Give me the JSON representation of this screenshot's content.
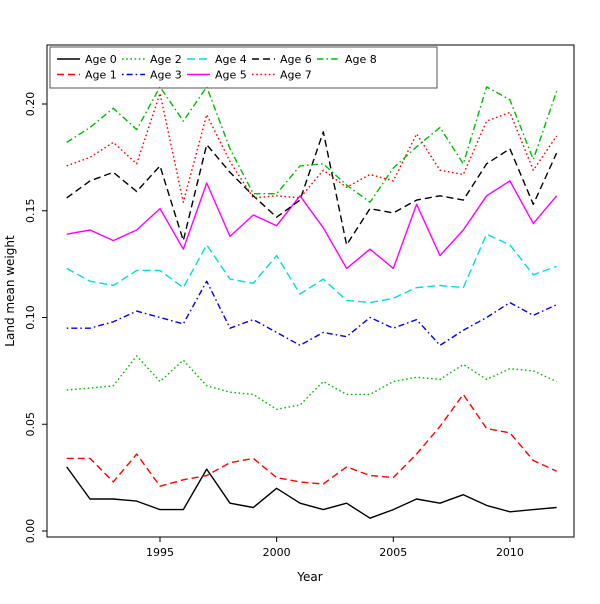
{
  "figure": {
    "background": "#ffffff",
    "plot_box_color": "#000000"
  },
  "chart_data": {
    "type": "line",
    "title": "",
    "xlabel": "Year",
    "ylabel": "Land mean weight",
    "x": [
      1991,
      1992,
      1993,
      1994,
      1995,
      1996,
      1997,
      1998,
      1999,
      2000,
      2001,
      2002,
      2003,
      2004,
      2005,
      2006,
      2007,
      2008,
      2009,
      2010,
      2011,
      2012
    ],
    "xlim": [
      1990.2,
      2012.8
    ],
    "ylim": [
      0.0,
      0.22
    ],
    "x_ticks": [
      1995,
      2000,
      2005,
      2010
    ],
    "x_tick_labels": [
      "1995",
      "2000",
      "2005",
      "2010"
    ],
    "y_ticks": [
      0.0,
      0.05,
      0.1,
      0.15,
      0.2
    ],
    "y_tick_labels": [
      "0.00",
      "0.05",
      "0.10",
      "0.15",
      "0.20"
    ],
    "grid": false,
    "legend_position": "top-left-inside",
    "legend_columns": 5,
    "series": [
      {
        "name": "Age 0",
        "color": "#000000",
        "linestyle": "solid",
        "values": [
          0.03,
          0.015,
          0.015,
          0.014,
          0.01,
          0.01,
          0.029,
          0.013,
          0.011,
          0.02,
          0.013,
          0.01,
          0.013,
          0.006,
          0.01,
          0.015,
          0.013,
          0.017,
          0.012,
          0.009,
          0.01,
          0.011
        ]
      },
      {
        "name": "Age 1",
        "color": "#ff0000",
        "linestyle": "dashed",
        "values": [
          0.034,
          0.034,
          0.023,
          0.036,
          0.021,
          0.024,
          0.026,
          0.032,
          0.034,
          0.025,
          0.023,
          0.022,
          0.03,
          0.026,
          0.025,
          0.036,
          0.049,
          0.064,
          0.048,
          0.046,
          0.033,
          0.028
        ]
      },
      {
        "name": "Age 2",
        "color": "#00bb00",
        "linestyle": "dotted",
        "values": [
          0.066,
          0.067,
          0.068,
          0.082,
          0.07,
          0.08,
          0.068,
          0.065,
          0.064,
          0.057,
          0.059,
          0.07,
          0.064,
          0.064,
          0.07,
          0.072,
          0.071,
          0.078,
          0.071,
          0.076,
          0.075,
          0.07
        ]
      },
      {
        "name": "Age 3",
        "color": "#0000ee",
        "linestyle": "dotdash",
        "values": [
          0.095,
          0.095,
          0.098,
          0.103,
          0.1,
          0.097,
          0.117,
          0.095,
          0.099,
          0.093,
          0.087,
          0.093,
          0.091,
          0.1,
          0.095,
          0.099,
          0.087,
          0.094,
          0.1,
          0.107,
          0.101,
          0.106
        ]
      },
      {
        "name": "Age 4",
        "color": "#00dddd",
        "linestyle": "longdash",
        "values": [
          0.123,
          0.117,
          0.115,
          0.122,
          0.122,
          0.114,
          0.134,
          0.118,
          0.116,
          0.129,
          0.111,
          0.118,
          0.108,
          0.107,
          0.109,
          0.114,
          0.115,
          0.114,
          0.139,
          0.134,
          0.12,
          0.124
        ]
      },
      {
        "name": "Age 5",
        "color": "#ff00ff",
        "linestyle": "solid",
        "values": [
          0.139,
          0.141,
          0.136,
          0.141,
          0.151,
          0.132,
          0.163,
          0.138,
          0.148,
          0.143,
          0.157,
          0.142,
          0.123,
          0.132,
          0.123,
          0.153,
          0.129,
          0.141,
          0.157,
          0.164,
          0.144,
          0.157
        ]
      },
      {
        "name": "Age 6",
        "color": "#000000",
        "linestyle": "dashed",
        "values": [
          0.156,
          0.164,
          0.168,
          0.159,
          0.171,
          0.136,
          0.181,
          0.168,
          0.157,
          0.147,
          0.155,
          0.187,
          0.134,
          0.151,
          0.149,
          0.155,
          0.157,
          0.155,
          0.172,
          0.179,
          0.153,
          0.177
        ]
      },
      {
        "name": "Age 7",
        "color": "#ff0000",
        "linestyle": "dotted",
        "values": [
          0.171,
          0.175,
          0.182,
          0.172,
          0.205,
          0.154,
          0.195,
          0.173,
          0.156,
          0.157,
          0.156,
          0.169,
          0.161,
          0.167,
          0.164,
          0.186,
          0.169,
          0.167,
          0.192,
          0.196,
          0.169,
          0.185
        ]
      },
      {
        "name": "Age 8",
        "color": "#00bb00",
        "linestyle": "dashdot",
        "values": [
          0.182,
          0.189,
          0.198,
          0.188,
          0.208,
          0.192,
          0.208,
          0.179,
          0.158,
          0.158,
          0.171,
          0.172,
          0.162,
          0.154,
          0.17,
          0.18,
          0.189,
          0.172,
          0.208,
          0.202,
          0.174,
          0.206
        ]
      }
    ]
  },
  "legend": {
    "entries": [
      "Age 0",
      "Age 1",
      "Age 2",
      "Age 3",
      "Age 4",
      "Age 5",
      "Age 6",
      "Age 7",
      "Age 8"
    ]
  }
}
